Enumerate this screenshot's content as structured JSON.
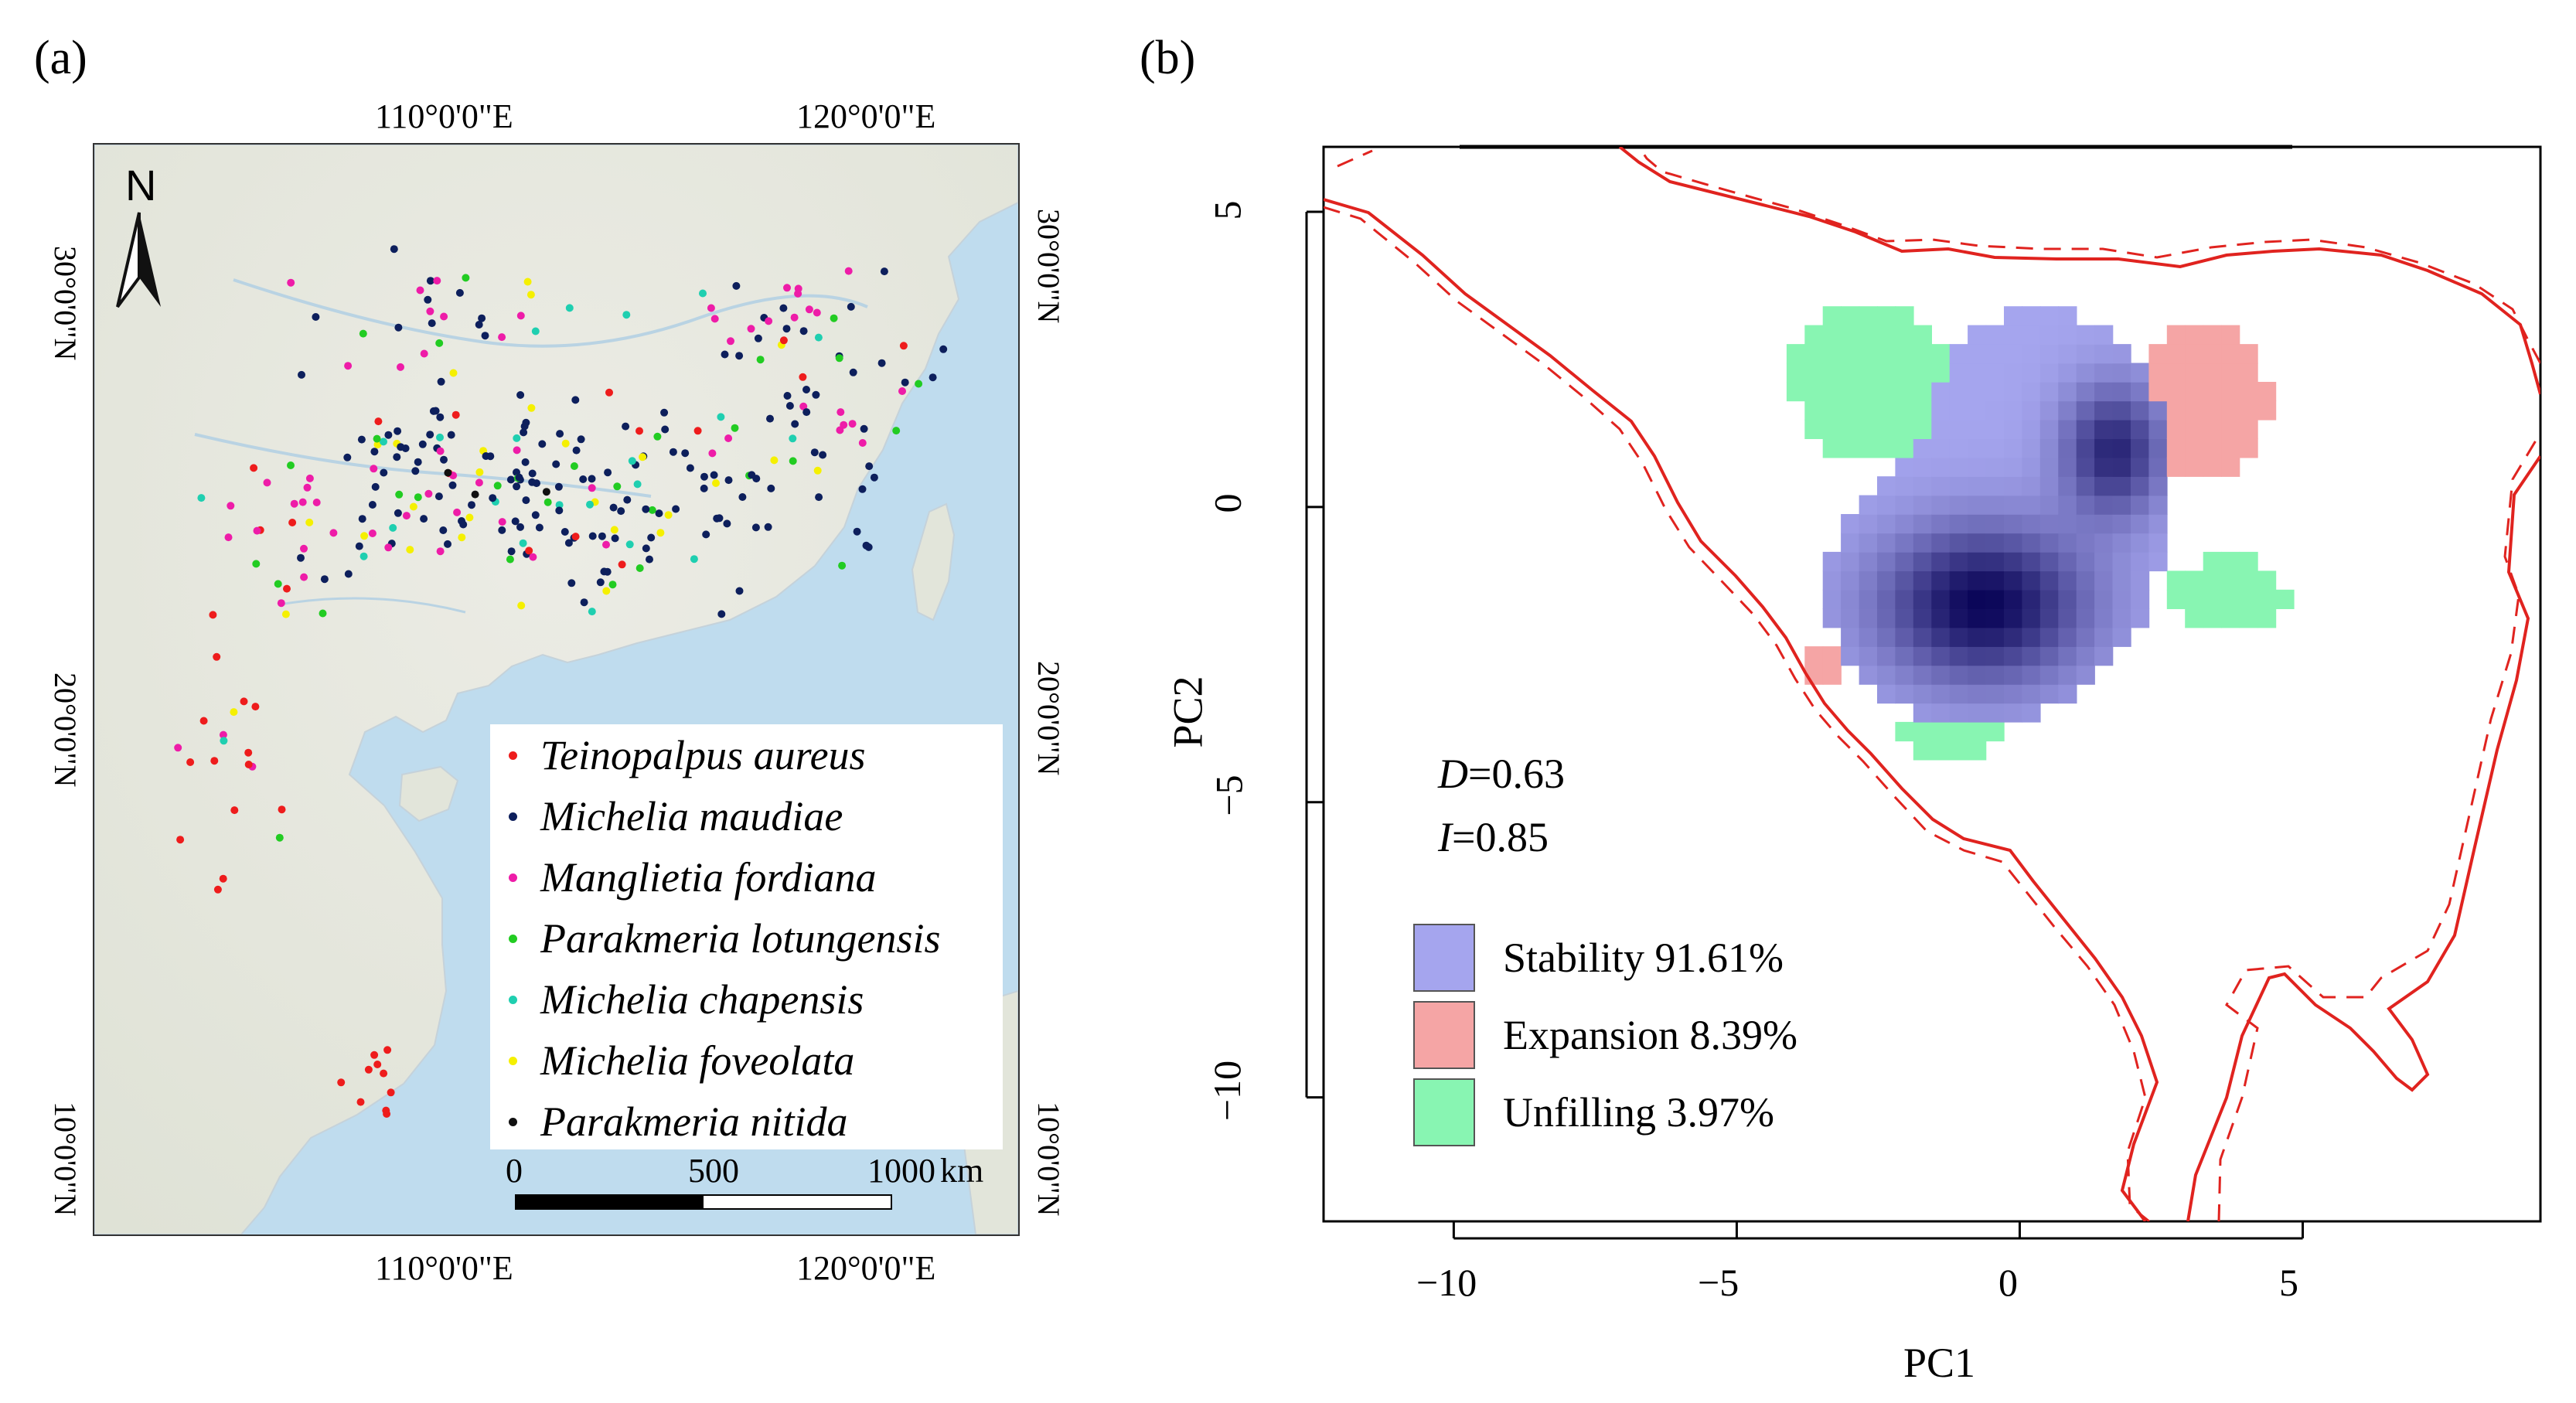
{
  "panel_a": {
    "label": "(a)",
    "north_label": "N",
    "lon_top": [
      "110°0'0\"E",
      "120°0'0\"E"
    ],
    "lon_bottom": [
      "110°0'0\"E",
      "120°0'0\"E"
    ],
    "lat_left": [
      "30°0'0\"N",
      "20°0'0\"N",
      "10°0'0\"N"
    ],
    "lat_right": [
      "30°0'0\"N",
      "20°0'0\"N",
      "10°0'0\"N"
    ],
    "legend": [
      {
        "name": "Teinopalpus aureus",
        "color": "#ee1c1c"
      },
      {
        "name": "Michelia maudiae",
        "color": "#0d1f5c"
      },
      {
        "name": "Manglietia fordiana",
        "color": "#ee1ca8"
      },
      {
        "name": "Parakmeria lotungensis",
        "color": "#22cc22"
      },
      {
        "name": "Michelia chapensis",
        "color": "#1fcfb0"
      },
      {
        "name": "Michelia foveolata",
        "color": "#f5f000"
      },
      {
        "name": "Parakmeria nitida",
        "color": "#111111"
      }
    ],
    "scale_bar": {
      "labels": [
        "0",
        "500",
        "1000"
      ],
      "unit": "km"
    }
  },
  "panel_b": {
    "label": "(b)",
    "chart_data": {
      "type": "niche-overlap",
      "xlabel": "PC1",
      "ylabel": "PC2",
      "xlim": [
        -12.3,
        9.2
      ],
      "ylim": [
        -12.1,
        6.1
      ],
      "xticks": [
        -10,
        -5,
        0,
        5
      ],
      "yticks": [
        5,
        0,
        -5,
        -10
      ],
      "xtick_labels": [
        "−10",
        "−5",
        "0",
        "5"
      ],
      "ytick_labels": [
        "5",
        "0",
        "−5",
        "−10"
      ],
      "D_label": "D",
      "D_value": "=0.63",
      "I_label": "I",
      "I_value": "=0.85",
      "legend": [
        {
          "label": "Stability 91.61%",
          "color": "#a5a5ee"
        },
        {
          "label": "Expansion 8.39%",
          "color": "#f5a5a5"
        },
        {
          "label": "Unfilling 3.97%",
          "color": "#88f5b2"
        }
      ],
      "density_peaks": [
        {
          "pc1": -0.8,
          "pc2": -1.8
        },
        {
          "pc1": 1.5,
          "pc2": 0.8
        }
      ]
    }
  }
}
